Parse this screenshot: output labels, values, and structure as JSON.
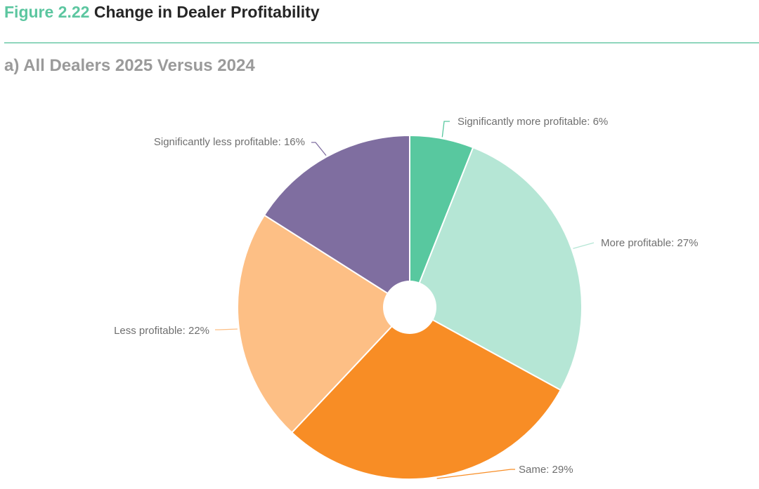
{
  "figure": {
    "number": "Figure 2.22",
    "title": "Change in Dealer Profitability",
    "subtitle": "a) All Dealers 2025 Versus 2024"
  },
  "chart_data": {
    "type": "pie",
    "title": "a) All Dealers 2025 Versus 2024",
    "donut_hole": true,
    "slices": [
      {
        "label": "Significantly more profitable",
        "value": 6,
        "display": "Significantly more profitable: 6%",
        "color": "#58c89f"
      },
      {
        "label": "More profitable",
        "value": 27,
        "display": "More profitable: 27%",
        "color": "#b5e6d5"
      },
      {
        "label": "Same",
        "value": 29,
        "display": "Same: 29%",
        "color": "#f88d25"
      },
      {
        "label": "Less profitable",
        "value": 22,
        "display": "Less profitable: 22%",
        "color": "#fdbf85"
      },
      {
        "label": "Significantly less profitable",
        "value": 16,
        "display": "Significantly less profitable: 16%",
        "color": "#7f6ea0"
      }
    ]
  }
}
